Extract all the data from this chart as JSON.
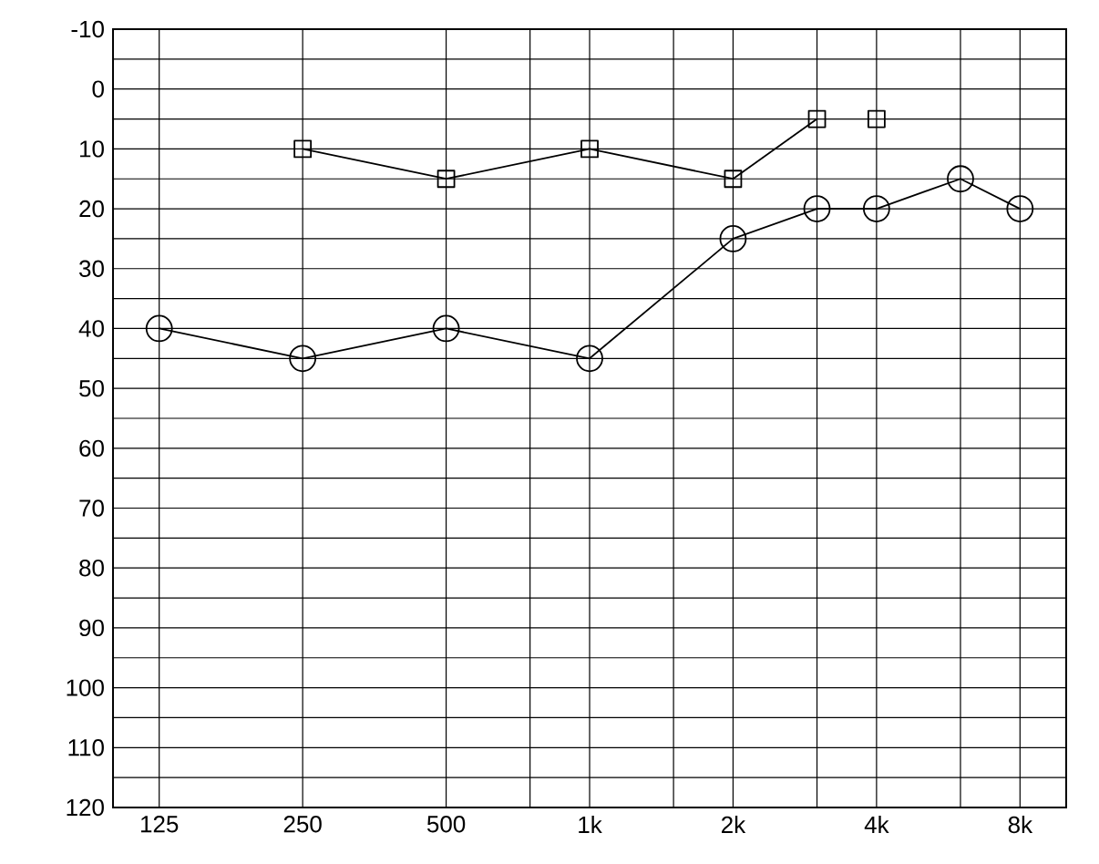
{
  "chart_data": {
    "type": "line",
    "log": "x",
    "grid": true,
    "xlim": [
      100,
      10000
    ],
    "xticks": [
      125,
      250,
      500,
      {
        "value": 750,
        "label": null
      },
      {
        "value": 1000,
        "label": "1k"
      },
      {
        "value": 1500,
        "label": null
      },
      {
        "value": 2000,
        "label": "2k"
      },
      {
        "value": 3000,
        "label": null
      },
      {
        "value": 4000,
        "label": "4k"
      },
      {
        "value": 6000,
        "label": null
      },
      {
        "value": 8000,
        "label": "8k"
      }
    ],
    "ylim": [
      120,
      -10
    ],
    "yticks": [
      -10,
      {
        "value": -5,
        "label": null
      },
      0,
      {
        "value": 5,
        "label": null
      },
      10,
      {
        "value": 15,
        "label": null
      },
      20,
      {
        "value": 25,
        "label": null
      },
      30,
      {
        "value": 35,
        "label": null
      },
      40,
      {
        "value": 45,
        "label": null
      },
      50,
      {
        "value": 55,
        "label": null
      },
      60,
      {
        "value": 65,
        "label": null
      },
      70,
      {
        "value": 75,
        "label": null
      },
      80,
      {
        "value": 85,
        "label": null
      },
      90,
      {
        "value": 95,
        "label": null
      },
      100,
      {
        "value": 105,
        "label": null
      },
      110,
      {
        "value": 115,
        "label": null
      },
      120
    ],
    "series": [
      {
        "type": "line",
        "marker": "circle",
        "color": "#000000",
        "x": [
          125,
          250,
          500,
          1000,
          2000,
          3000,
          4000,
          6000,
          8000
        ],
        "values": [
          40,
          45,
          40,
          45,
          25,
          20,
          20,
          15,
          20
        ]
      },
      {
        "type": "line",
        "marker": "square",
        "color": "#000000",
        "x": [
          250,
          500,
          1000,
          2000,
          3000
        ],
        "values": [
          10,
          15,
          10,
          15,
          5
        ]
      },
      {
        "type": "scatter",
        "marker": "square",
        "color": "#000000",
        "x": [
          4000
        ],
        "values": [
          5
        ]
      }
    ]
  }
}
